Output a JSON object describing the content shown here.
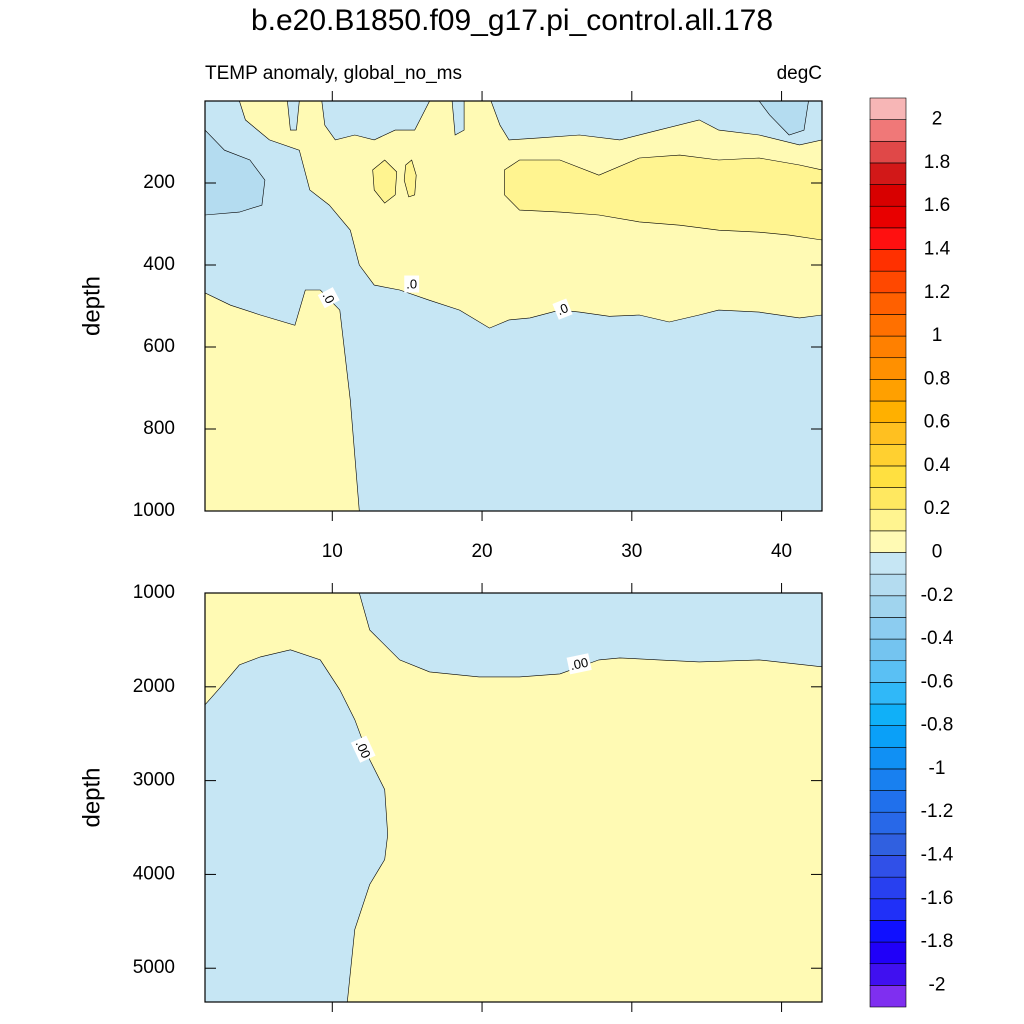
{
  "chart_data": {
    "type": "contour",
    "title": "b.e20.B1850.f09_g17.pi_control.all.178",
    "subtitle_left": "TEMP anomaly, global_no_ms",
    "subtitle_right": "degC",
    "colorbar": {
      "levels": [
        -2,
        -1.9,
        -1.8,
        -1.7,
        -1.6,
        -1.5,
        -1.4,
        -1.3,
        -1.2,
        -1.1,
        -1,
        -0.9,
        -0.8,
        -0.7,
        -0.6,
        -0.5,
        -0.4,
        -0.3,
        -0.2,
        -0.1,
        0,
        0.1,
        0.2,
        0.3,
        0.4,
        0.5,
        0.6,
        0.7,
        0.8,
        0.9,
        1,
        1.1,
        1.2,
        1.3,
        1.4,
        1.5,
        1.6,
        1.7,
        1.8,
        1.9,
        2
      ],
      "colors": [
        "#7f2ff0",
        "#4010f0",
        "#2000f8",
        "#1010ff",
        "#2030f8",
        "#2840f0",
        "#3050e8",
        "#3060e0",
        "#2868e8",
        "#2070ec",
        "#1880f0",
        "#1090f4",
        "#0aa0f8",
        "#10b0f8",
        "#30b8f8",
        "#5ac0f4",
        "#74c4f0",
        "#8cccf0",
        "#a0d4ee",
        "#b4dcf0",
        "#c6e6f4",
        "#fffab4",
        "#fff490",
        "#ffe860",
        "#ffe040",
        "#ffd030",
        "#ffc020",
        "#ffb000",
        "#ffa000",
        "#ff9000",
        "#ff8000",
        "#ff7000",
        "#ff6000",
        "#ff4800",
        "#ff3000",
        "#ff1010",
        "#e80000",
        "#d80000",
        "#d21818",
        "#e04848",
        "#f07878",
        "#f7b6b6"
      ],
      "ticks": [
        -2,
        -1.8,
        -1.6,
        -1.4,
        -1.2,
        -1,
        -0.8,
        -0.6,
        -0.4,
        -0.2,
        0,
        0.2,
        0.4,
        0.6,
        0.8,
        1,
        1.2,
        1.4,
        1.6,
        1.8,
        2
      ]
    },
    "panels": [
      {
        "ylabel": "depth",
        "y_reversed": true,
        "show_xtick_labels": true,
        "xlim": [
          1.5,
          42.7
        ],
        "ylim": [
          0,
          1000
        ],
        "xticks": [
          10,
          20,
          30,
          40
        ],
        "yticks": [
          200,
          400,
          600,
          800,
          1000
        ],
        "background": "#c6e6f4",
        "regions": [
          {
            "color": "#fffab4",
            "x": [
              3.8,
              4.2,
              5.8,
              7.8,
              8.5,
              9.8,
              11.2,
              11.8,
              12.8,
              14.5,
              16.5,
              18.5,
              20.5,
              21.8,
              23.2,
              25.2,
              26.5,
              28.5,
              30.5,
              32.5,
              34.5,
              35.8,
              38.5,
              41.2,
              42.7,
              42.7,
              41.2,
              38.5,
              35.8,
              34.5,
              31.8,
              29.2,
              26.5,
              23.8,
              21.8,
              21.2,
              20.6,
              18.8,
              18.8,
              18.2,
              18,
              16.5,
              15.5,
              14.2,
              12.8,
              11.5,
              10.2,
              9.5,
              9.3,
              7.8,
              7.6,
              7.2,
              7
            ],
            "y": [
              0,
              46,
              95,
              120,
              217,
              254,
              315,
              400,
              449,
              461,
              486,
              510,
              554,
              534,
              529,
              510,
              515,
              525,
              522,
              539,
              522,
              510,
              515,
              529,
              522,
              95,
              107,
              83,
              71,
              46,
              71,
              95,
              83,
              90,
              95,
              59,
              0,
              0,
              71,
              83,
              0,
              0,
              71,
              71,
              95,
              83,
              95,
              59,
              0,
              0,
              71,
              71,
              0
            ]
          },
          {
            "color": "#fffab4",
            "x": [
              1.5,
              3.2,
              5.2,
              7.5,
              8.2,
              9.2,
              10.5,
              11.2,
              11.8,
              1.5
            ],
            "y": [
              468,
              498,
              522,
              547,
              461,
              461,
              510,
              730,
              1000,
              1000
            ]
          },
          {
            "color": "#fff490",
            "x": [
              21.5,
              22.5,
              25.2,
              27.8,
              30.5,
              33.2,
              35.8,
              38.5,
              41.2,
              42.7,
              42.7,
              40.5,
              38.5,
              35.8,
              33.2,
              30.5,
              27.8,
              25.2,
              22.5,
              21.5
            ],
            "y": [
              168,
              144,
              144,
              181,
              139,
              132,
              144,
              139,
              156,
              168,
              339,
              327,
              320,
              315,
              303,
              295,
              278,
              271,
              266,
              229
            ]
          },
          {
            "color": "#fff490",
            "x": [
              12.7,
              13.5,
              14.3,
              14.2,
              13.5,
              12.8
            ],
            "y": [
              168,
              144,
              173,
              229,
              249,
              217
            ]
          },
          {
            "color": "#fff490",
            "x": [
              14.9,
              15.3,
              15.6,
              15.5,
              15.1,
              14.8
            ],
            "y": [
              156,
              144,
              181,
              229,
              234,
              193
            ]
          },
          {
            "color": "#b4dcf0",
            "x": [
              1.5,
              2.8,
              4.5,
              5.5,
              5.3,
              3.8,
              1.5
            ],
            "y": [
              71,
              120,
              144,
              193,
              254,
              271,
              278
            ]
          },
          {
            "color": "#b4dcf0",
            "x": [
              38.5,
              39.2,
              40.5,
              41.5,
              41.8
            ],
            "y": [
              0,
              34,
              83,
              71,
              0
            ]
          }
        ],
        "contour_labels": [
          {
            "text": ".0",
            "x": 9.7,
            "y": 481
          },
          {
            "text": ".0",
            "x": 15.3,
            "y": 449
          },
          {
            "text": ".0",
            "x": 25.4,
            "y": 510
          }
        ]
      },
      {
        "ylabel": "depth",
        "y_reversed": true,
        "show_xtick_labels": false,
        "xlim": [
          1.5,
          42.7
        ],
        "ylim": [
          1000,
          5360
        ],
        "xticks": [
          10,
          20,
          30,
          40
        ],
        "yticks": [
          1000,
          2000,
          3000,
          4000,
          5000
        ],
        "background": "#fffab4",
        "regions": [
          {
            "color": "#c6e6f4",
            "x": [
              11.8,
              12.5,
              14.5,
              16.5,
              19.8,
              22.5,
              25.2,
              27.8,
              29.2,
              31.8,
              34.5,
              38.5,
              42.7,
              42.7
            ],
            "y": [
              1000,
              1394,
              1713,
              1841,
              1894,
              1894,
              1862,
              1713,
              1692,
              1713,
              1734,
              1713,
              1787,
              1000
            ]
          },
          {
            "color": "#c6e6f4",
            "x": [
              1.5,
              2.5,
              3.8,
              5.2,
              7.2,
              9.2,
              10.5,
              11.5,
              12.5,
              13.5,
              13.7,
              13.5,
              12.5,
              11.5,
              11,
              1.5
            ],
            "y": [
              2192,
              2011,
              1766,
              1681,
              1606,
              1713,
              2032,
              2351,
              2777,
              3096,
              3575,
              3841,
              4107,
              4586,
              5360,
              5360
            ]
          }
        ],
        "contour_labels": [
          {
            "text": ".00",
            "x": 26.5,
            "y": 1766
          },
          {
            "text": ".00",
            "x": 12,
            "y": 2670
          }
        ]
      }
    ]
  }
}
